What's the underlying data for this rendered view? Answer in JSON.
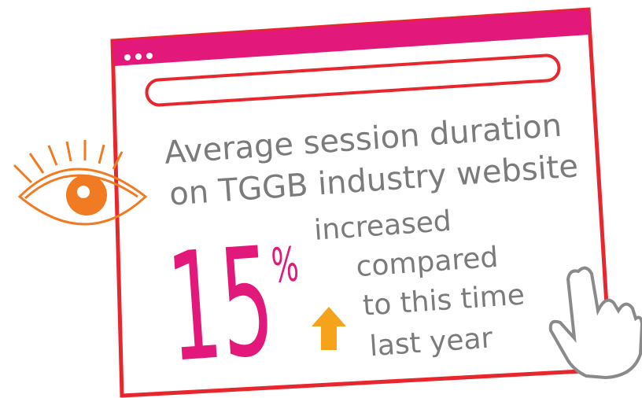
{
  "headline": {
    "line1": "Average session duration",
    "line2": "on TGGB industry website"
  },
  "stat": {
    "value": 15,
    "unit": "%"
  },
  "description": {
    "line1": "increased",
    "line2": "compared",
    "line3": "to this time",
    "line4": "last year"
  }
}
